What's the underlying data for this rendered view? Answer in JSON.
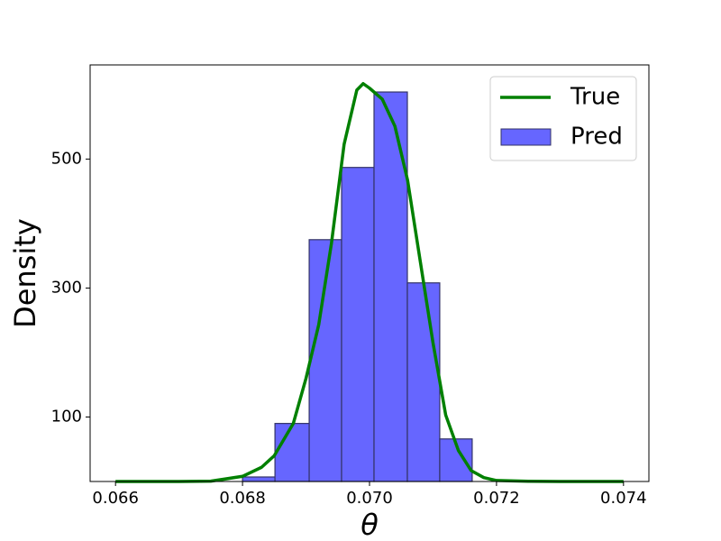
{
  "chart_data": {
    "type": "histogram",
    "xlabel": "θ",
    "ylabel": "Density",
    "xlim": [
      0.0656,
      0.0744
    ],
    "ylim": [
      0,
      646
    ],
    "xticks": [
      0.066,
      0.068,
      {
        "value": 0.07,
        "label": "0.070"
      },
      0.072,
      0.074
    ],
    "yticks": [
      100,
      300,
      500
    ],
    "legend": "upper right",
    "series": [
      {
        "name": "True",
        "type": "line",
        "color": "#008000",
        "x": [
          0.066,
          0.067,
          0.0675,
          0.068,
          0.0683,
          0.0685,
          0.0688,
          0.069,
          0.0692,
          0.0694,
          0.0696,
          0.0698,
          0.0699,
          0.07,
          0.0702,
          0.0704,
          0.0706,
          0.0708,
          0.071,
          0.0712,
          0.0714,
          0.0716,
          0.0718,
          0.072,
          0.0725,
          0.073,
          0.074
        ],
        "values": [
          0,
          0,
          0.5,
          8,
          22,
          40,
          90,
          160,
          243,
          369,
          523,
          607,
          617,
          610,
          593,
          551,
          467,
          341,
          215,
          103,
          48,
          17,
          6,
          1.5,
          0.3,
          0,
          0
        ]
      },
      {
        "name": "Pred",
        "type": "histogram",
        "color": "#6666ff",
        "edgecolor": "#333366",
        "bins": [
          0.068,
          0.068511,
          0.06905,
          0.06956,
          0.070071,
          0.070596,
          0.071106,
          0.071617
        ],
        "values": [
          7,
          90,
          375,
          487,
          604,
          308,
          66
        ]
      }
    ]
  }
}
